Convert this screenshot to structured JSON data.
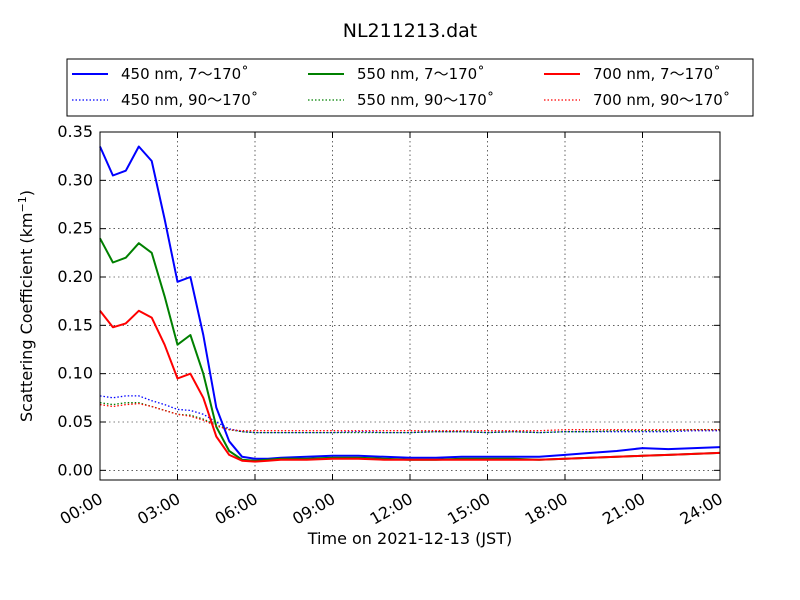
{
  "chart_data": {
    "type": "line",
    "title": "NL211213.dat",
    "xlabel": "Time on 2021-12-13 (JST)",
    "ylabel": "Scattering Coefficient (km",
    "ylabel_sup": "−1",
    "ylabel_close": ")",
    "xlim": [
      0,
      24
    ],
    "ylim": [
      -0.01,
      0.35
    ],
    "grid": true,
    "legend_position": "top",
    "x_ticks": [
      0,
      3,
      6,
      9,
      12,
      15,
      18,
      21,
      24
    ],
    "x_tick_labels": [
      "00:00",
      "03:00",
      "06:00",
      "09:00",
      "12:00",
      "15:00",
      "18:00",
      "21:00",
      "24:00"
    ],
    "y_ticks": [
      0.0,
      0.05,
      0.1,
      0.15,
      0.2,
      0.25,
      0.3,
      0.35
    ],
    "y_tick_labels": [
      "0.00",
      "0.05",
      "0.10",
      "0.15",
      "0.20",
      "0.25",
      "0.30",
      "0.35"
    ],
    "x": [
      0,
      0.5,
      1,
      1.5,
      2,
      2.5,
      3,
      3.5,
      4,
      4.5,
      5,
      5.5,
      6,
      6.5,
      7,
      8,
      9,
      10,
      11,
      12,
      13,
      14,
      15,
      16,
      17,
      18,
      19,
      20,
      21,
      22,
      23,
      24
    ],
    "series": [
      {
        "name": "450 nm, 7～170˚",
        "color": "#0000ff",
        "style": "solid",
        "values": [
          0.335,
          0.305,
          0.31,
          0.335,
          0.32,
          0.26,
          0.195,
          0.2,
          0.14,
          0.065,
          0.03,
          0.014,
          0.012,
          0.012,
          0.013,
          0.014,
          0.015,
          0.015,
          0.014,
          0.013,
          0.013,
          0.014,
          0.014,
          0.014,
          0.014,
          0.016,
          0.018,
          0.02,
          0.023,
          0.022,
          0.023,
          0.024
        ]
      },
      {
        "name": "450 nm, 90～170˚",
        "color": "#0000ff",
        "style": "dotted",
        "values": [
          0.077,
          0.075,
          0.077,
          0.077,
          0.072,
          0.068,
          0.063,
          0.062,
          0.058,
          0.05,
          0.043,
          0.04,
          0.039,
          0.039,
          0.039,
          0.039,
          0.039,
          0.04,
          0.039,
          0.039,
          0.04,
          0.04,
          0.039,
          0.04,
          0.039,
          0.04,
          0.04,
          0.04,
          0.04,
          0.04,
          0.041,
          0.041
        ]
      },
      {
        "name": "550 nm, 7～170˚",
        "color": "#008000",
        "style": "solid",
        "values": [
          0.24,
          0.215,
          0.22,
          0.235,
          0.225,
          0.18,
          0.13,
          0.14,
          0.1,
          0.045,
          0.02,
          0.011,
          0.01,
          0.011,
          0.012,
          0.012,
          0.013,
          0.013,
          0.012,
          0.011,
          0.011,
          0.012,
          0.012,
          0.012,
          0.011,
          0.012,
          0.013,
          0.014,
          0.015,
          0.016,
          0.017,
          0.018
        ]
      },
      {
        "name": "550 nm, 90～170˚",
        "color": "#008000",
        "style": "dotted",
        "values": [
          0.07,
          0.068,
          0.07,
          0.07,
          0.066,
          0.062,
          0.058,
          0.057,
          0.053,
          0.047,
          0.042,
          0.04,
          0.039,
          0.039,
          0.039,
          0.039,
          0.039,
          0.039,
          0.039,
          0.039,
          0.04,
          0.04,
          0.039,
          0.04,
          0.039,
          0.04,
          0.04,
          0.041,
          0.041,
          0.041,
          0.042,
          0.042
        ]
      },
      {
        "name": "700 nm, 7～170˚",
        "color": "#ff0000",
        "style": "solid",
        "values": [
          0.165,
          0.148,
          0.152,
          0.165,
          0.158,
          0.13,
          0.095,
          0.1,
          0.075,
          0.035,
          0.016,
          0.01,
          0.009,
          0.01,
          0.011,
          0.011,
          0.012,
          0.012,
          0.011,
          0.011,
          0.011,
          0.011,
          0.011,
          0.011,
          0.011,
          0.012,
          0.013,
          0.014,
          0.015,
          0.016,
          0.017,
          0.018
        ]
      },
      {
        "name": "700 nm, 90～170˚",
        "color": "#ff0000",
        "style": "dotted",
        "values": [
          0.068,
          0.066,
          0.068,
          0.069,
          0.066,
          0.062,
          0.058,
          0.056,
          0.052,
          0.046,
          0.042,
          0.041,
          0.041,
          0.041,
          0.041,
          0.041,
          0.041,
          0.041,
          0.041,
          0.041,
          0.041,
          0.041,
          0.041,
          0.041,
          0.041,
          0.042,
          0.042,
          0.042,
          0.042,
          0.042,
          0.042,
          0.042
        ]
      }
    ]
  }
}
